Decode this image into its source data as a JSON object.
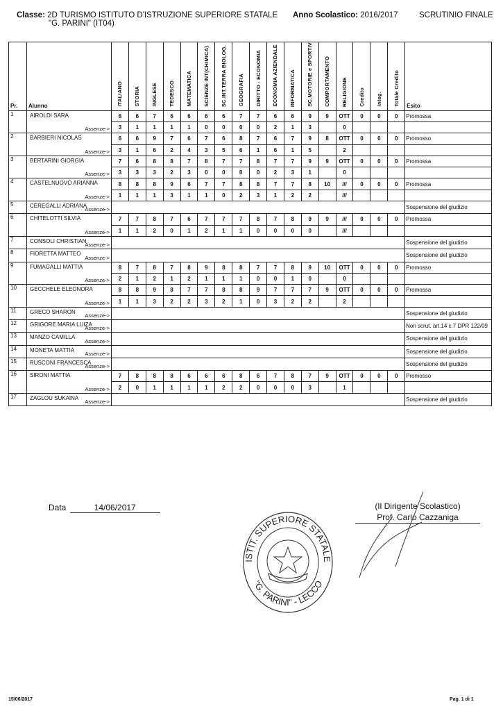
{
  "header": {
    "classe_label": "Classe:",
    "classe_value": "2D TURISMO ISTITUTO D'ISTRUZIONE SUPERIORE STATALE",
    "classe_value2": "\"G. PARINI\" (IT04)",
    "anno_label": "Anno Scolastico:",
    "anno_value": "2016/2017",
    "scrutinio": "SCRUTINIO FINALE"
  },
  "columns": {
    "pr": "Pr.",
    "alunno": "Alunno",
    "subjects": [
      "ITALIANO",
      "STORIA",
      "INGLESE",
      "TEDESCO",
      "MATEMATICA",
      "SCIENZE INT(CHIMICA)",
      "SC.INT.TERRA BIOLOG.",
      "GEOGRAFIA",
      "DIRITTO - ECONOMIA",
      "ECONOMIA AZIENDALE",
      "INFORMATICA",
      "SC.MOTORIE e SPORTIV",
      "COMPORTAMENTO",
      "RELIGIONE",
      "Credito",
      "Integ.",
      "Totale Credito"
    ],
    "esito": "Esito"
  },
  "absences_label": "Assenze->",
  "students": [
    {
      "pr": "1",
      "name": "AIROLDI SARA",
      "grades": [
        "6",
        "6",
        "7",
        "6",
        "6",
        "6",
        "6",
        "7",
        "7",
        "6",
        "6",
        "9",
        "9",
        "OTT",
        "0",
        "0",
        "0"
      ],
      "absences": [
        "3",
        "1",
        "1",
        "1",
        "1",
        "0",
        "0",
        "0",
        "0",
        "2",
        "1",
        "3",
        "",
        "0",
        "",
        "",
        ""
      ],
      "esito": "Promossa"
    },
    {
      "pr": "2",
      "name": "BARBIERI NICOLAS",
      "grades": [
        "6",
        "6",
        "9",
        "7",
        "6",
        "7",
        "6",
        "8",
        "7",
        "6",
        "7",
        "9",
        "8",
        "OTT",
        "0",
        "0",
        "0"
      ],
      "absences": [
        "3",
        "1",
        "6",
        "2",
        "4",
        "3",
        "5",
        "6",
        "1",
        "6",
        "1",
        "5",
        "",
        "2",
        "",
        "",
        ""
      ],
      "esito": "Promosso"
    },
    {
      "pr": "3",
      "name": "BERTARINI GIORGIA",
      "grades": [
        "7",
        "6",
        "8",
        "8",
        "7",
        "8",
        "7",
        "7",
        "8",
        "7",
        "7",
        "9",
        "9",
        "OTT",
        "0",
        "0",
        "0"
      ],
      "absences": [
        "3",
        "3",
        "3",
        "2",
        "3",
        "0",
        "0",
        "0",
        "0",
        "2",
        "3",
        "1",
        "",
        "0",
        "",
        "",
        ""
      ],
      "esito": "Promossa"
    },
    {
      "pr": "4",
      "name": "CASTELNUOVO ARIANNA",
      "grades": [
        "8",
        "8",
        "8",
        "9",
        "6",
        "7",
        "7",
        "8",
        "8",
        "7",
        "7",
        "8",
        "10",
        "///",
        "0",
        "0",
        "0"
      ],
      "absences": [
        "1",
        "1",
        "1",
        "3",
        "1",
        "1",
        "0",
        "2",
        "3",
        "1",
        "2",
        "2",
        "",
        "///",
        "",
        "",
        ""
      ],
      "esito": "Promossa"
    },
    {
      "pr": "5",
      "name": "CEREGALLI ADRIANA",
      "esito": "Sospensione del giudizio"
    },
    {
      "pr": "6",
      "name": "CHITELOTTI SILVIA",
      "grades": [
        "7",
        "7",
        "8",
        "7",
        "6",
        "7",
        "7",
        "7",
        "8",
        "7",
        "8",
        "9",
        "9",
        "///",
        "0",
        "0",
        "0"
      ],
      "absences": [
        "1",
        "1",
        "2",
        "0",
        "1",
        "2",
        "1",
        "1",
        "0",
        "0",
        "0",
        "0",
        "",
        "///",
        "",
        "",
        ""
      ],
      "esito": "Promossa"
    },
    {
      "pr": "7",
      "name": "CONSOLI CHRISTIAN",
      "esito": "Sospensione del giudizio"
    },
    {
      "pr": "8",
      "name": "FIORETTA MATTEO",
      "esito": "Sospensione del giudizio"
    },
    {
      "pr": "9",
      "name": "FUMAGALLI MATTIA",
      "grades": [
        "8",
        "7",
        "8",
        "7",
        "8",
        "9",
        "8",
        "8",
        "7",
        "7",
        "8",
        "9",
        "10",
        "OTT",
        "0",
        "0",
        "0"
      ],
      "absences": [
        "2",
        "1",
        "2",
        "1",
        "2",
        "1",
        "1",
        "1",
        "0",
        "0",
        "1",
        "0",
        "",
        "0",
        "",
        "",
        ""
      ],
      "esito": "Promosso"
    },
    {
      "pr": "10",
      "name": "GECCHELE ELEONORA",
      "grades": [
        "8",
        "8",
        "9",
        "8",
        "7",
        "7",
        "8",
        "8",
        "9",
        "7",
        "7",
        "7",
        "9",
        "OTT",
        "0",
        "0",
        "0"
      ],
      "absences": [
        "1",
        "1",
        "3",
        "2",
        "2",
        "3",
        "2",
        "1",
        "0",
        "3",
        "2",
        "2",
        "",
        "2",
        "",
        "",
        ""
      ],
      "esito": "Promossa"
    },
    {
      "pr": "11",
      "name": "GRECO SHARON",
      "esito": "Sospensione del giudizio"
    },
    {
      "pr": "12",
      "name": "GRIGORE MARIA LUIZA",
      "esito": "Non scrut. art.14 c.7 DPR 122/09"
    },
    {
      "pr": "13",
      "name": "MANZO CAMILLA",
      "esito": "Sospensione del giudizio"
    },
    {
      "pr": "14",
      "name": "MONETA MATTIA",
      "esito": "Sospensione del giudizio"
    },
    {
      "pr": "15",
      "name": "RUSCONI FRANCESCA",
      "esito": "Sospensione del giudizio"
    },
    {
      "pr": "16",
      "name": "SIRONI MATTIA",
      "grades": [
        "7",
        "8",
        "8",
        "8",
        "6",
        "6",
        "6",
        "8",
        "6",
        "7",
        "8",
        "7",
        "9",
        "OTT",
        "0",
        "0",
        "0"
      ],
      "absences": [
        "2",
        "0",
        "1",
        "1",
        "1",
        "1",
        "2",
        "2",
        "0",
        "0",
        "0",
        "3",
        "",
        "1",
        "",
        "",
        ""
      ],
      "esito": "Promosso"
    },
    {
      "pr": "17",
      "name": "ZAGLOU SUKAINA",
      "esito": "Sospensione del giudizio"
    }
  ],
  "footer": {
    "data_label": "Data",
    "data_value": "14/06/2017",
    "dirigente_title": "(Il Dirigente Scolastico)",
    "dirigente_name": "Prof. Carlo Cazzaniga",
    "print_date": "15/06/2017",
    "page": "Pag. 1 di 1"
  },
  "stamp": {
    "top_text": "ISTIT. SUPERIORE STATALE",
    "bottom_text": "\"G. PARINI\" - LECCO"
  }
}
